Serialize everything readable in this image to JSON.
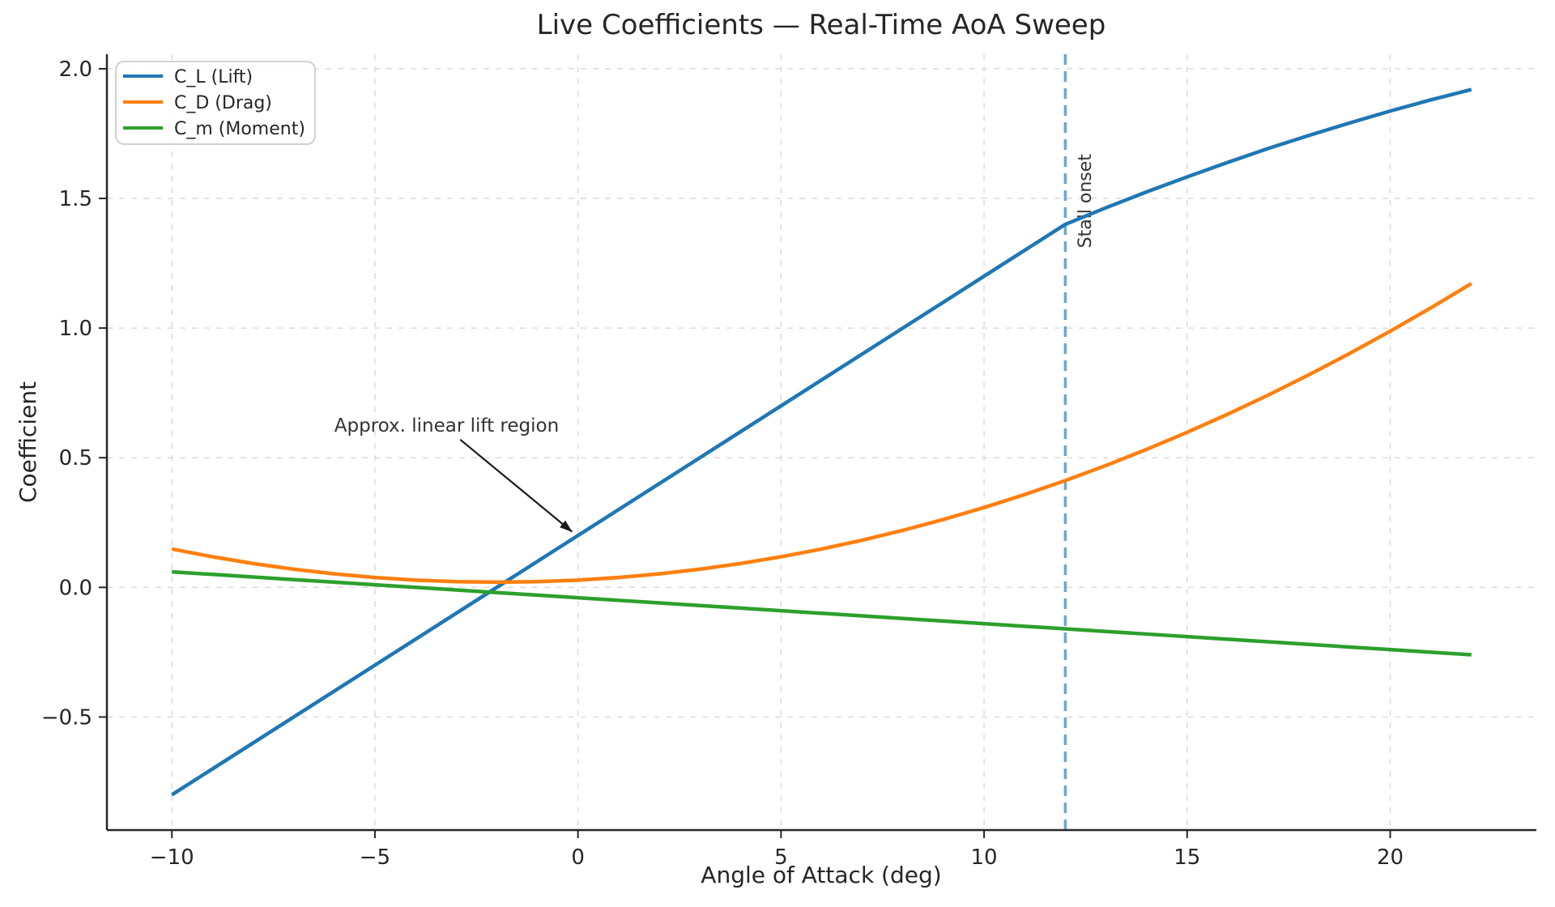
{
  "chart_data": {
    "type": "line",
    "title": "Live Coefficients — Real-Time AoA Sweep",
    "xlabel": "Angle of Attack (deg)",
    "ylabel": "Coefficient",
    "xlim": [
      -11.6,
      23.6
    ],
    "ylim": [
      -0.936,
      2.056
    ],
    "xticks": [
      -10,
      -5,
      0,
      5,
      10,
      15,
      20
    ],
    "yticks": [
      -0.5,
      0,
      0.5,
      1,
      1.5,
      2
    ],
    "grid": "dashed",
    "legend_position": "upper-left",
    "x": [
      -10,
      -9,
      -8,
      -7,
      -6,
      -5,
      -4,
      -3,
      -2,
      -1,
      0,
      1,
      2,
      3,
      4,
      5,
      6,
      7,
      8,
      9,
      10,
      11,
      12,
      13,
      14,
      15,
      16,
      17,
      18,
      19,
      20,
      21,
      22
    ],
    "series": [
      {
        "id": "c_l_lift",
        "name": "C_L (Lift)",
        "color": "#1f77b4",
        "values": [
          -0.8,
          -0.7,
          -0.6,
          -0.5,
          -0.4,
          -0.3,
          -0.2,
          -0.1,
          0,
          0.1,
          0.2,
          0.3,
          0.4,
          0.5,
          0.6,
          0.7,
          0.8,
          0.9,
          1,
          1.1,
          1.2,
          1.3,
          1.4,
          1.464,
          1.525,
          1.583,
          1.639,
          1.693,
          1.743,
          1.791,
          1.837,
          1.88,
          1.92
        ]
      },
      {
        "id": "c_d_drag",
        "name": "C_D (Drag)",
        "color": "#ff7f0e",
        "values": [
          0.148,
          0.118,
          0.092,
          0.07,
          0.052,
          0.038,
          0.028,
          0.022,
          0.02,
          0.022,
          0.028,
          0.038,
          0.052,
          0.07,
          0.092,
          0.118,
          0.148,
          0.182,
          0.22,
          0.262,
          0.308,
          0.358,
          0.412,
          0.47,
          0.532,
          0.598,
          0.668,
          0.742,
          0.82,
          0.902,
          0.988,
          1.078,
          1.172
        ]
      },
      {
        "id": "c_m_moment",
        "name": "C_m (Moment)",
        "color": "#2ca02c",
        "values": [
          0.06,
          0.05,
          0.04,
          0.03,
          0.02,
          0.01,
          0,
          -0.01,
          -0.02,
          -0.03,
          -0.04,
          -0.05,
          -0.06,
          -0.07,
          -0.08,
          -0.09,
          -0.1,
          -0.11,
          -0.12,
          -0.13,
          -0.14,
          -0.15,
          -0.16,
          -0.17,
          -0.18,
          -0.19,
          -0.2,
          -0.21,
          -0.22,
          -0.23,
          -0.24,
          -0.25,
          -0.26
        ]
      }
    ],
    "stall_line": {
      "x": 12,
      "label": "Stall onset",
      "color": "#1f77b4",
      "opacity": 0.65,
      "label_xy": [
        12.63,
        1.49
      ]
    },
    "annotation": {
      "text": "Approx. linear lift region",
      "text_xy": [
        -6,
        0.6
      ],
      "arrow_start_xy": [
        -2.9,
        0.57
      ],
      "arrow_end_xy": [
        -0.15,
        0.215
      ],
      "arrow_color": "#1a1a1a"
    }
  }
}
